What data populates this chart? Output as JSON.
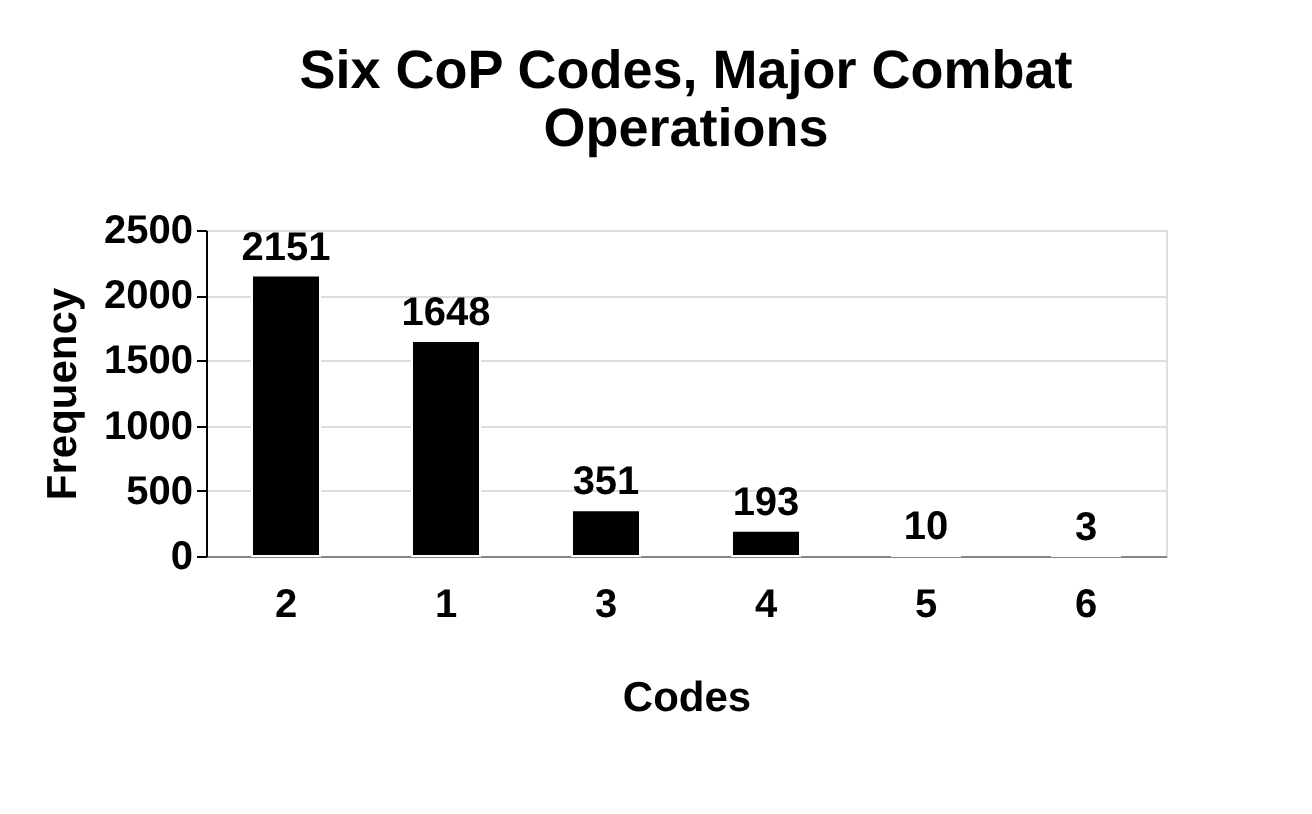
{
  "chart_data": {
    "type": "bar",
    "title": "Six CoP Codes, Major Combat Operations",
    "xlabel": "Codes",
    "ylabel": "Frequency",
    "categories": [
      "2",
      "1",
      "3",
      "4",
      "5",
      "6"
    ],
    "values": [
      2151,
      1648,
      351,
      193,
      10,
      3
    ],
    "color": "#000000",
    "ylim": [
      0,
      2500
    ],
    "yticks": [
      0,
      500,
      1000,
      1500,
      2000,
      2500
    ],
    "grid": "y",
    "data_labels": true
  }
}
